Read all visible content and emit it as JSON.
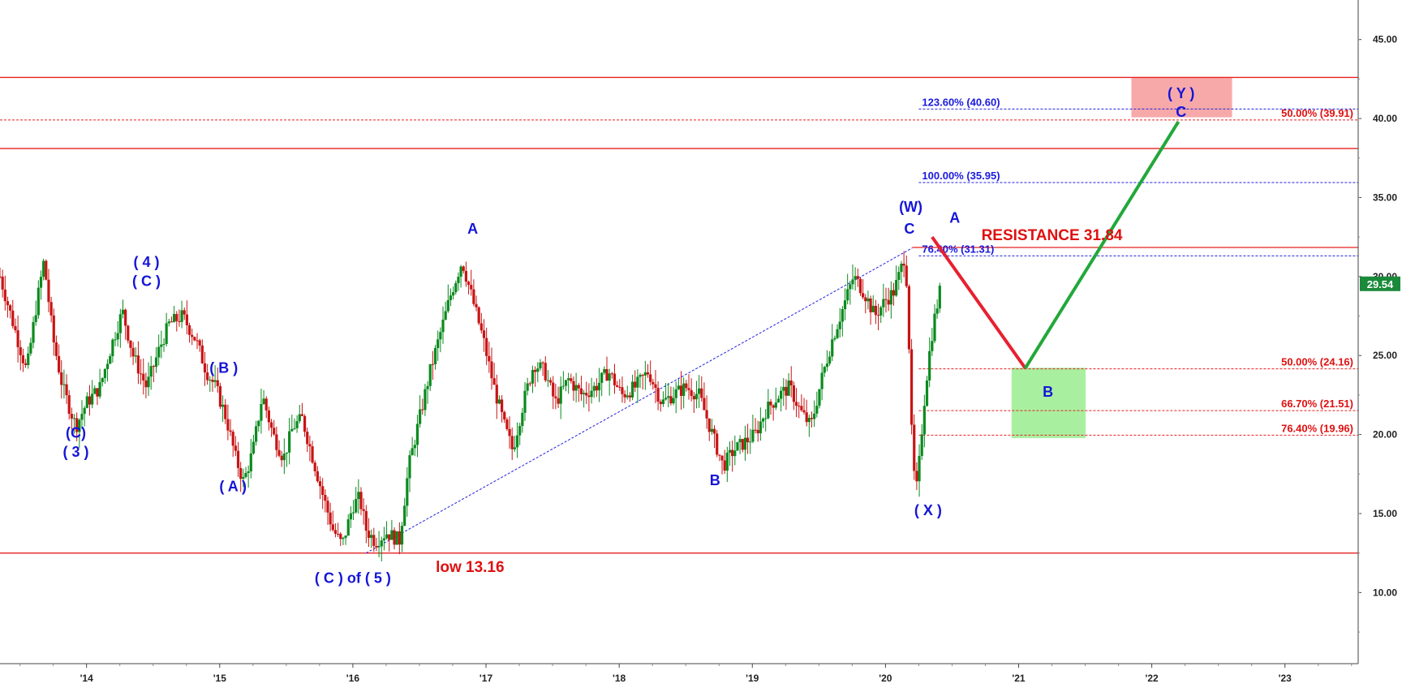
{
  "chart_data": {
    "type": "candlestick",
    "y_ticks": [
      "45.00",
      "40.00",
      "35.00",
      "30.00",
      "25.00",
      "20.00",
      "15.00",
      "10.00"
    ],
    "y_tick_values": [
      45,
      40,
      35,
      30,
      25,
      20,
      15,
      10
    ],
    "ylim": [
      5.5,
      47.5
    ],
    "x_ticks": [
      "'14",
      "'15",
      "'16",
      "'17",
      "'18",
      "'19",
      "'20",
      "'21",
      "'22",
      "'23"
    ],
    "x_tick_values": [
      2014,
      2015,
      2016,
      2017,
      2018,
      2019,
      2020,
      2021,
      2022,
      2023
    ],
    "xlim": [
      2013.35,
      2023.55
    ],
    "last_price": "29.54",
    "last_price_value": 29.54,
    "price_path": [
      [
        2013.35,
        30.0
      ],
      [
        2013.45,
        27.0
      ],
      [
        2013.55,
        24.0
      ],
      [
        2013.62,
        28.0
      ],
      [
        2013.68,
        31.0
      ],
      [
        2013.75,
        26.0
      ],
      [
        2013.82,
        23.0
      ],
      [
        2013.92,
        20.5
      ],
      [
        2014.0,
        22.0
      ],
      [
        2014.1,
        23.0
      ],
      [
        2014.2,
        26.0
      ],
      [
        2014.27,
        27.8
      ],
      [
        2014.35,
        25.0
      ],
      [
        2014.45,
        23.0
      ],
      [
        2014.55,
        25.5
      ],
      [
        2014.62,
        27.0
      ],
      [
        2014.72,
        27.5
      ],
      [
        2014.82,
        26.0
      ],
      [
        2014.9,
        24.0
      ],
      [
        2014.97,
        23.0
      ],
      [
        2015.05,
        21.0
      ],
      [
        2015.12,
        18.5
      ],
      [
        2015.18,
        17.0
      ],
      [
        2015.25,
        19.0
      ],
      [
        2015.32,
        22.5
      ],
      [
        2015.4,
        20.0
      ],
      [
        2015.48,
        18.5
      ],
      [
        2015.55,
        20.5
      ],
      [
        2015.62,
        21.0
      ],
      [
        2015.7,
        18.5
      ],
      [
        2015.78,
        16.0
      ],
      [
        2015.85,
        14.0
      ],
      [
        2015.92,
        13.0
      ],
      [
        2016.0,
        15.5
      ],
      [
        2016.05,
        16.0
      ],
      [
        2016.1,
        14.0
      ],
      [
        2016.17,
        13.2
      ],
      [
        2016.25,
        13.8
      ],
      [
        2016.35,
        13.3
      ],
      [
        2016.42,
        18.0
      ],
      [
        2016.5,
        21.0
      ],
      [
        2016.58,
        24.0
      ],
      [
        2016.66,
        26.5
      ],
      [
        2016.74,
        29.0
      ],
      [
        2016.82,
        31.0
      ],
      [
        2016.9,
        28.5
      ],
      [
        2016.98,
        26.0
      ],
      [
        2017.06,
        23.0
      ],
      [
        2017.14,
        20.5
      ],
      [
        2017.2,
        19.0
      ],
      [
        2017.28,
        22.0
      ],
      [
        2017.36,
        24.5
      ],
      [
        2017.44,
        24.0
      ],
      [
        2017.52,
        22.0
      ],
      [
        2017.62,
        23.5
      ],
      [
        2017.72,
        22.5
      ],
      [
        2017.82,
        23.0
      ],
      [
        2017.92,
        24.0
      ],
      [
        2018.02,
        22.5
      ],
      [
        2018.12,
        23.0
      ],
      [
        2018.22,
        24.0
      ],
      [
        2018.32,
        22.0
      ],
      [
        2018.4,
        22.5
      ],
      [
        2018.5,
        23.0
      ],
      [
        2018.6,
        22.5
      ],
      [
        2018.7,
        20.0
      ],
      [
        2018.78,
        18.0
      ],
      [
        2018.86,
        19.0
      ],
      [
        2018.94,
        19.5
      ],
      [
        2019.02,
        20.0
      ],
      [
        2019.1,
        21.5
      ],
      [
        2019.2,
        22.5
      ],
      [
        2019.28,
        23.0
      ],
      [
        2019.36,
        21.5
      ],
      [
        2019.44,
        20.5
      ],
      [
        2019.52,
        23.5
      ],
      [
        2019.6,
        26.0
      ],
      [
        2019.68,
        28.0
      ],
      [
        2019.76,
        30.0
      ],
      [
        2019.84,
        29.0
      ],
      [
        2019.92,
        27.5
      ],
      [
        2020.0,
        28.5
      ],
      [
        2020.06,
        29.0
      ],
      [
        2020.1,
        30.0
      ],
      [
        2020.15,
        31.5
      ],
      [
        2020.18,
        25.0
      ],
      [
        2020.2,
        19.0
      ],
      [
        2020.22,
        17.0
      ],
      [
        2020.24,
        16.5
      ],
      [
        2020.26,
        19.0
      ],
      [
        2020.29,
        22.0
      ],
      [
        2020.32,
        24.5
      ],
      [
        2020.36,
        27.0
      ],
      [
        2020.42,
        29.54
      ]
    ],
    "horizontal_lines": [
      {
        "value": 42.6,
        "style": "solid"
      },
      {
        "value": 38.1,
        "style": "solid"
      },
      {
        "value": 31.84,
        "style": "solid"
      },
      {
        "value": 12.5,
        "style": "solid"
      }
    ],
    "fib_levels": [
      {
        "label": "123.60% (40.60)",
        "value": 40.6,
        "color": "blue"
      },
      {
        "label": "100.00% (35.95)",
        "value": 35.95,
        "color": "blue"
      },
      {
        "label": "76.40% (31.31)",
        "value": 31.31,
        "color": "blue"
      },
      {
        "label": "50.00% (39.91)",
        "value": 39.91,
        "color": "red"
      },
      {
        "label": "50.00% (24.16)",
        "value": 24.16,
        "color": "red"
      },
      {
        "label": "66.70% (21.51)",
        "value": 21.51,
        "color": "red"
      },
      {
        "label": "76.40% (19.96)",
        "value": 19.96,
        "color": "red"
      }
    ],
    "trend_line": [
      [
        2016.1,
        12.5
      ],
      [
        2020.2,
        31.8
      ]
    ],
    "projection_red": [
      [
        2020.35,
        32.5
      ],
      [
        2021.05,
        24.2
      ]
    ],
    "projection_green": [
      [
        2021.05,
        24.2
      ],
      [
        2022.2,
        39.8
      ]
    ],
    "zone_red": {
      "x": [
        2021.85,
        2022.6
      ],
      "y": [
        40.1,
        42.6
      ]
    },
    "zone_green": {
      "x": [
        2020.95,
        2021.5
      ],
      "y": [
        19.8,
        24.2
      ]
    },
    "wave_labels": [
      {
        "text": "(C)",
        "x": 2013.92,
        "y": 19.8
      },
      {
        "text": "( 3 )",
        "x": 2013.92,
        "y": 18.6
      },
      {
        "text": "( 4 )",
        "x": 2014.45,
        "y": 30.6
      },
      {
        "text": "( C )",
        "x": 2014.45,
        "y": 29.4
      },
      {
        "text": "( B )",
        "x": 2015.03,
        "y": 23.9
      },
      {
        "text": "( A )",
        "x": 2015.1,
        "y": 16.4
      },
      {
        "text": "A",
        "x": 2016.9,
        "y": 32.7
      },
      {
        "text": "( C ) of ( 5 )",
        "x": 2016.0,
        "y": 10.6
      },
      {
        "text": "B",
        "x": 2018.72,
        "y": 16.8
      },
      {
        "text": "(W)",
        "x": 2020.19,
        "y": 34.1
      },
      {
        "text": "C",
        "x": 2020.18,
        "y": 32.7
      },
      {
        "text": "A",
        "x": 2020.52,
        "y": 33.4
      },
      {
        "text": "( X )",
        "x": 2020.32,
        "y": 14.9
      },
      {
        "text": "( Y )",
        "x": 2022.22,
        "y": 41.3
      },
      {
        "text": "C",
        "x": 2022.22,
        "y": 40.1
      },
      {
        "text": "B",
        "x": 2021.22,
        "y": 22.4
      }
    ],
    "annotations": [
      {
        "text": "RESISTANCE 31.84",
        "x": 2021.25,
        "y": 32.3
      },
      {
        "text": "low 13.16",
        "x": 2016.88,
        "y": 11.3
      }
    ]
  }
}
